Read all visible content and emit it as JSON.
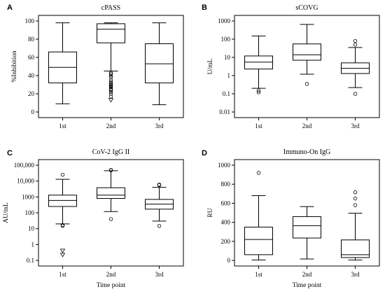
{
  "chart_data": [
    {
      "type": "box",
      "panel": "A",
      "title": "cPASS",
      "ylabel": "%Inhibition",
      "xlabel": "",
      "scale": "linear",
      "ylim": [
        0,
        100
      ],
      "yticks": [
        0,
        20,
        40,
        60,
        80,
        100
      ],
      "ytick_labels": [
        "0",
        "20",
        "40",
        "60",
        "80",
        "100"
      ],
      "categories": [
        "1st",
        "2nd",
        "3rd"
      ],
      "boxes": [
        {
          "min": 9,
          "q1": 32,
          "median": 49,
          "q3": 66,
          "max": 98,
          "outliers": []
        },
        {
          "min": 45,
          "q1": 76,
          "median": 91,
          "q3": 97,
          "max": 98,
          "outliers": [
            43,
            42,
            40,
            38,
            35,
            33,
            31,
            30,
            29,
            28,
            27,
            25,
            24,
            22,
            20,
            17,
            13
          ]
        },
        {
          "min": 8,
          "q1": 32,
          "median": 53,
          "q3": 75,
          "max": 98,
          "outliers": []
        }
      ]
    },
    {
      "type": "box",
      "panel": "B",
      "title": "sCOVG",
      "ylabel": "U/mL",
      "xlabel": "",
      "scale": "log",
      "ylim": [
        0.01,
        1000
      ],
      "yticks": [
        0.01,
        0.1,
        1,
        10,
        100,
        1000
      ],
      "ytick_labels": [
        "0.01",
        "0.1",
        "1",
        "10",
        "100",
        "1000"
      ],
      "categories": [
        "1st",
        "2nd",
        "3rd"
      ],
      "boxes": [
        {
          "min": 0.2,
          "q1": 2.3,
          "median": 5.5,
          "q3": 12,
          "max": 150,
          "outliers": [
            0.15,
            0.12
          ]
        },
        {
          "min": 1.2,
          "q1": 7,
          "median": 14,
          "q3": 55,
          "max": 650,
          "outliers": [
            0.35
          ]
        },
        {
          "min": 0.22,
          "q1": 1.3,
          "median": 2.5,
          "q3": 5,
          "max": 35,
          "outliers": [
            80,
            50,
            0.1
          ]
        }
      ]
    },
    {
      "type": "box",
      "panel": "C",
      "title": "CoV-2 IgG II",
      "ylabel": "AU/mL",
      "xlabel": "Time point",
      "scale": "log",
      "ylim": [
        0.1,
        100000
      ],
      "yticks": [
        0.1,
        1,
        10,
        100,
        1000,
        10000,
        100000
      ],
      "ytick_labels": [
        "0.1",
        "1",
        "10",
        "100",
        "1000",
        "10,000",
        "100,000"
      ],
      "categories": [
        "1st",
        "2nd",
        "3rd"
      ],
      "boxes": [
        {
          "min": 20,
          "q1": 250,
          "median": 600,
          "q3": 1300,
          "max": 13000,
          "outliers": [
            25000,
            17,
            15,
            0.4,
            0.22
          ]
        },
        {
          "min": 120,
          "q1": 800,
          "median": 1300,
          "q3": 3800,
          "max": 45000,
          "outliers": [
            50000,
            48000,
            40
          ]
        },
        {
          "min": 30,
          "q1": 170,
          "median": 350,
          "q3": 700,
          "max": 4000,
          "outliers": [
            6000,
            5500,
            15
          ]
        }
      ]
    },
    {
      "type": "box",
      "panel": "D",
      "title": "Immuno-On IgG",
      "ylabel": "RU",
      "xlabel": "Time point",
      "scale": "linear",
      "ylim": [
        0,
        1000
      ],
      "yticks": [
        0,
        200,
        400,
        600,
        800,
        1000
      ],
      "ytick_labels": [
        "0",
        "200",
        "400",
        "600",
        "800",
        "1000"
      ],
      "categories": [
        "1st",
        "2nd",
        "3rd"
      ],
      "boxes": [
        {
          "min": 5,
          "q1": 60,
          "median": 220,
          "q3": 350,
          "max": 680,
          "outliers": [
            920
          ]
        },
        {
          "min": 15,
          "q1": 235,
          "median": 365,
          "q3": 460,
          "max": 565,
          "outliers": []
        },
        {
          "min": 5,
          "q1": 30,
          "median": 60,
          "q3": 215,
          "max": 495,
          "outliers": [
            715,
            650,
            580
          ]
        }
      ]
    }
  ]
}
